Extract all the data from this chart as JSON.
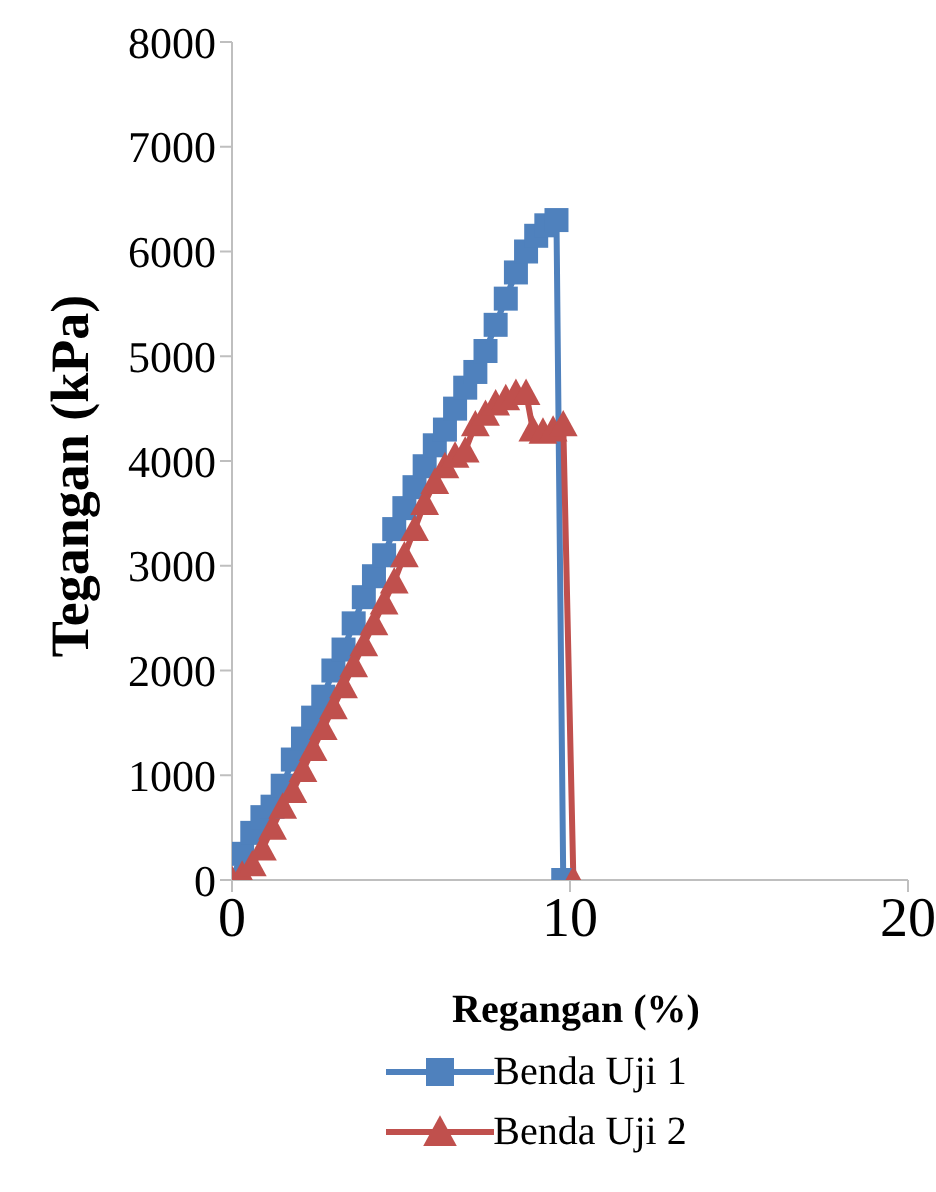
{
  "chart_data": {
    "type": "line",
    "xlabel": "Regangan (%)",
    "ylabel": "Tegangan (kPa)",
    "xlim": [
      0,
      20
    ],
    "xticks": [
      0,
      10,
      20
    ],
    "ylim": [
      0,
      8000
    ],
    "yticks": [
      0,
      1000,
      2000,
      3000,
      4000,
      5000,
      6000,
      7000,
      8000
    ],
    "grid": false,
    "legend": "bottom",
    "line_style": "solid",
    "series": [
      {
        "name": "Benda Uji 1",
        "color": "#4f81bd",
        "marker": "square",
        "x": [
          0,
          0.3,
          0.6,
          0.9,
          1.2,
          1.5,
          1.8,
          2.1,
          2.4,
          2.7,
          3.0,
          3.3,
          3.6,
          3.9,
          4.2,
          4.5,
          4.8,
          5.1,
          5.4,
          5.7,
          6.0,
          6.3,
          6.6,
          6.9,
          7.2,
          7.5,
          7.8,
          8.1,
          8.4,
          8.7,
          9.0,
          9.3,
          9.6,
          9.8
        ],
        "values": [
          0,
          250,
          450,
          600,
          700,
          900,
          1150,
          1350,
          1550,
          1750,
          2000,
          2200,
          2450,
          2700,
          2900,
          3100,
          3350,
          3550,
          3750,
          3950,
          4150,
          4300,
          4500,
          4700,
          4850,
          5050,
          5300,
          5550,
          5800,
          6000,
          6150,
          6250,
          6300,
          0
        ]
      },
      {
        "name": "Benda Uji 2",
        "color": "#c0504d",
        "marker": "triangle",
        "x": [
          0,
          0.3,
          0.6,
          0.9,
          1.2,
          1.5,
          1.8,
          2.1,
          2.4,
          2.7,
          3.0,
          3.3,
          3.6,
          3.9,
          4.2,
          4.5,
          4.8,
          5.1,
          5.4,
          5.7,
          6.0,
          6.3,
          6.6,
          6.9,
          7.2,
          7.5,
          7.8,
          8.1,
          8.4,
          8.7,
          8.9,
          9.2,
          9.5,
          9.8,
          10.1
        ],
        "values": [
          0,
          50,
          150,
          300,
          500,
          700,
          850,
          1050,
          1250,
          1450,
          1650,
          1850,
          2050,
          2250,
          2450,
          2650,
          2850,
          3100,
          3350,
          3600,
          3800,
          3950,
          4050,
          4100,
          4350,
          4450,
          4550,
          4600,
          4650,
          4650,
          4300,
          4280,
          4300,
          4350,
          0
        ]
      }
    ]
  }
}
